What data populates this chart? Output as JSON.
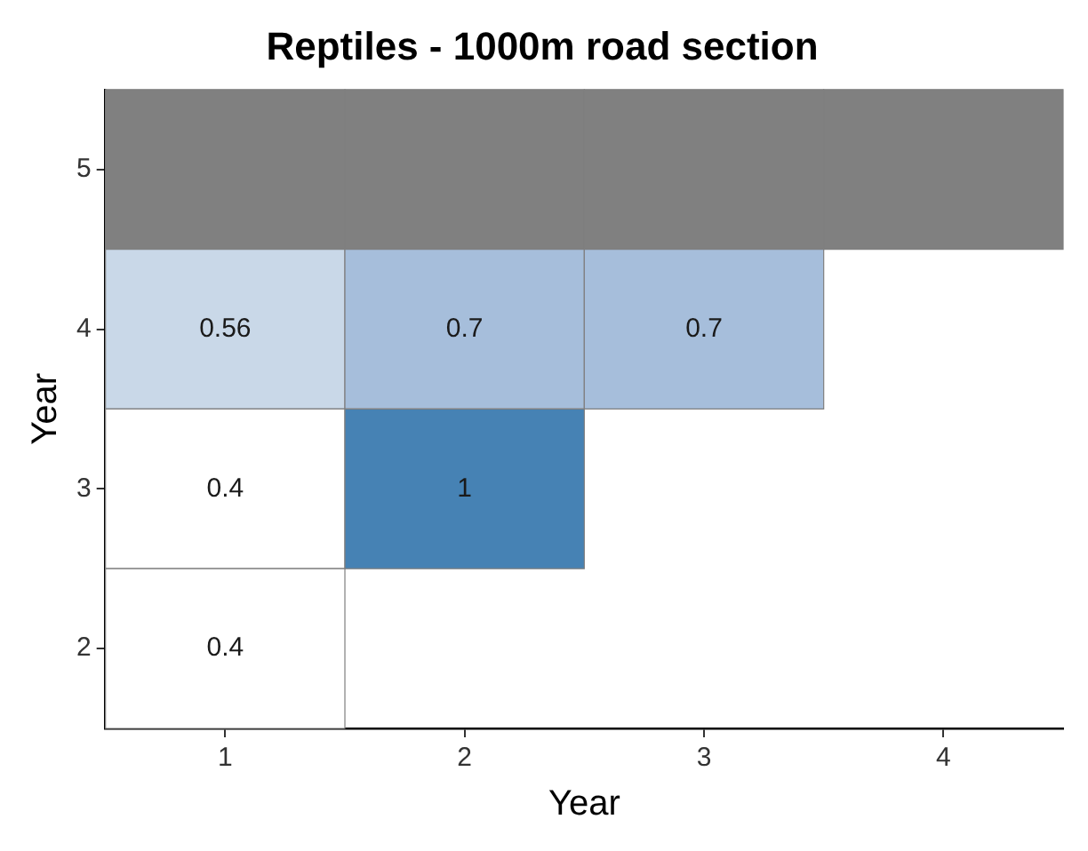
{
  "chart_data": {
    "type": "heatmap",
    "title": "Reptiles - 1000m road section",
    "xlabel": "Year",
    "ylabel": "Year",
    "categories": [
      "1",
      "2",
      "3",
      "4"
    ],
    "y_categories": [
      "5",
      "4",
      "3",
      "2"
    ],
    "cells": [
      [
        null,
        null,
        null,
        null
      ],
      [
        0.56,
        0.7,
        0.7,
        null
      ],
      [
        0.4,
        1,
        null,
        null
      ],
      [
        0.4,
        null,
        null,
        null
      ]
    ],
    "colors": [
      [
        "#808080",
        "#808080",
        "#808080",
        "#808080"
      ],
      [
        "#c9d8e8",
        "#a6bedb",
        "#a6bedb",
        null
      ],
      [
        "#ffffff",
        "#4682b4",
        null,
        null
      ],
      [
        "#ffffff",
        null,
        null,
        null
      ]
    ],
    "data_labels": true,
    "grid": false,
    "legend": false
  }
}
